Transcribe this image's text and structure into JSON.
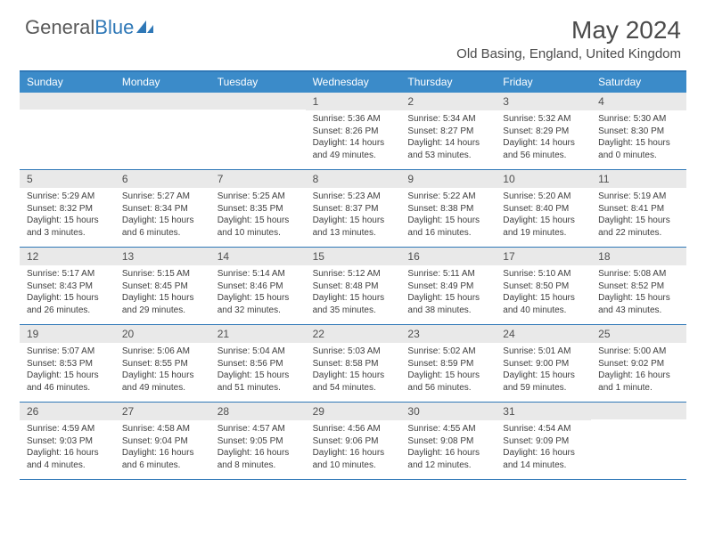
{
  "brand": {
    "part1": "General",
    "part2": "Blue"
  },
  "title": "May 2024",
  "location": "Old Basing, England, United Kingdom",
  "dows": [
    "Sunday",
    "Monday",
    "Tuesday",
    "Wednesday",
    "Thursday",
    "Friday",
    "Saturday"
  ],
  "colors": {
    "header_bar": "#3b8bc9",
    "rule": "#2f78b7",
    "daynum_bg": "#e9e9e9"
  },
  "weeks": [
    [
      {
        "day": "",
        "sunrise": "",
        "sunset": "",
        "daylight": ""
      },
      {
        "day": "",
        "sunrise": "",
        "sunset": "",
        "daylight": ""
      },
      {
        "day": "",
        "sunrise": "",
        "sunset": "",
        "daylight": ""
      },
      {
        "day": "1",
        "sunrise": "Sunrise: 5:36 AM",
        "sunset": "Sunset: 8:26 PM",
        "daylight": "Daylight: 14 hours and 49 minutes."
      },
      {
        "day": "2",
        "sunrise": "Sunrise: 5:34 AM",
        "sunset": "Sunset: 8:27 PM",
        "daylight": "Daylight: 14 hours and 53 minutes."
      },
      {
        "day": "3",
        "sunrise": "Sunrise: 5:32 AM",
        "sunset": "Sunset: 8:29 PM",
        "daylight": "Daylight: 14 hours and 56 minutes."
      },
      {
        "day": "4",
        "sunrise": "Sunrise: 5:30 AM",
        "sunset": "Sunset: 8:30 PM",
        "daylight": "Daylight: 15 hours and 0 minutes."
      }
    ],
    [
      {
        "day": "5",
        "sunrise": "Sunrise: 5:29 AM",
        "sunset": "Sunset: 8:32 PM",
        "daylight": "Daylight: 15 hours and 3 minutes."
      },
      {
        "day": "6",
        "sunrise": "Sunrise: 5:27 AM",
        "sunset": "Sunset: 8:34 PM",
        "daylight": "Daylight: 15 hours and 6 minutes."
      },
      {
        "day": "7",
        "sunrise": "Sunrise: 5:25 AM",
        "sunset": "Sunset: 8:35 PM",
        "daylight": "Daylight: 15 hours and 10 minutes."
      },
      {
        "day": "8",
        "sunrise": "Sunrise: 5:23 AM",
        "sunset": "Sunset: 8:37 PM",
        "daylight": "Daylight: 15 hours and 13 minutes."
      },
      {
        "day": "9",
        "sunrise": "Sunrise: 5:22 AM",
        "sunset": "Sunset: 8:38 PM",
        "daylight": "Daylight: 15 hours and 16 minutes."
      },
      {
        "day": "10",
        "sunrise": "Sunrise: 5:20 AM",
        "sunset": "Sunset: 8:40 PM",
        "daylight": "Daylight: 15 hours and 19 minutes."
      },
      {
        "day": "11",
        "sunrise": "Sunrise: 5:19 AM",
        "sunset": "Sunset: 8:41 PM",
        "daylight": "Daylight: 15 hours and 22 minutes."
      }
    ],
    [
      {
        "day": "12",
        "sunrise": "Sunrise: 5:17 AM",
        "sunset": "Sunset: 8:43 PM",
        "daylight": "Daylight: 15 hours and 26 minutes."
      },
      {
        "day": "13",
        "sunrise": "Sunrise: 5:15 AM",
        "sunset": "Sunset: 8:45 PM",
        "daylight": "Daylight: 15 hours and 29 minutes."
      },
      {
        "day": "14",
        "sunrise": "Sunrise: 5:14 AM",
        "sunset": "Sunset: 8:46 PM",
        "daylight": "Daylight: 15 hours and 32 minutes."
      },
      {
        "day": "15",
        "sunrise": "Sunrise: 5:12 AM",
        "sunset": "Sunset: 8:48 PM",
        "daylight": "Daylight: 15 hours and 35 minutes."
      },
      {
        "day": "16",
        "sunrise": "Sunrise: 5:11 AM",
        "sunset": "Sunset: 8:49 PM",
        "daylight": "Daylight: 15 hours and 38 minutes."
      },
      {
        "day": "17",
        "sunrise": "Sunrise: 5:10 AM",
        "sunset": "Sunset: 8:50 PM",
        "daylight": "Daylight: 15 hours and 40 minutes."
      },
      {
        "day": "18",
        "sunrise": "Sunrise: 5:08 AM",
        "sunset": "Sunset: 8:52 PM",
        "daylight": "Daylight: 15 hours and 43 minutes."
      }
    ],
    [
      {
        "day": "19",
        "sunrise": "Sunrise: 5:07 AM",
        "sunset": "Sunset: 8:53 PM",
        "daylight": "Daylight: 15 hours and 46 minutes."
      },
      {
        "day": "20",
        "sunrise": "Sunrise: 5:06 AM",
        "sunset": "Sunset: 8:55 PM",
        "daylight": "Daylight: 15 hours and 49 minutes."
      },
      {
        "day": "21",
        "sunrise": "Sunrise: 5:04 AM",
        "sunset": "Sunset: 8:56 PM",
        "daylight": "Daylight: 15 hours and 51 minutes."
      },
      {
        "day": "22",
        "sunrise": "Sunrise: 5:03 AM",
        "sunset": "Sunset: 8:58 PM",
        "daylight": "Daylight: 15 hours and 54 minutes."
      },
      {
        "day": "23",
        "sunrise": "Sunrise: 5:02 AM",
        "sunset": "Sunset: 8:59 PM",
        "daylight": "Daylight: 15 hours and 56 minutes."
      },
      {
        "day": "24",
        "sunrise": "Sunrise: 5:01 AM",
        "sunset": "Sunset: 9:00 PM",
        "daylight": "Daylight: 15 hours and 59 minutes."
      },
      {
        "day": "25",
        "sunrise": "Sunrise: 5:00 AM",
        "sunset": "Sunset: 9:02 PM",
        "daylight": "Daylight: 16 hours and 1 minute."
      }
    ],
    [
      {
        "day": "26",
        "sunrise": "Sunrise: 4:59 AM",
        "sunset": "Sunset: 9:03 PM",
        "daylight": "Daylight: 16 hours and 4 minutes."
      },
      {
        "day": "27",
        "sunrise": "Sunrise: 4:58 AM",
        "sunset": "Sunset: 9:04 PM",
        "daylight": "Daylight: 16 hours and 6 minutes."
      },
      {
        "day": "28",
        "sunrise": "Sunrise: 4:57 AM",
        "sunset": "Sunset: 9:05 PM",
        "daylight": "Daylight: 16 hours and 8 minutes."
      },
      {
        "day": "29",
        "sunrise": "Sunrise: 4:56 AM",
        "sunset": "Sunset: 9:06 PM",
        "daylight": "Daylight: 16 hours and 10 minutes."
      },
      {
        "day": "30",
        "sunrise": "Sunrise: 4:55 AM",
        "sunset": "Sunset: 9:08 PM",
        "daylight": "Daylight: 16 hours and 12 minutes."
      },
      {
        "day": "31",
        "sunrise": "Sunrise: 4:54 AM",
        "sunset": "Sunset: 9:09 PM",
        "daylight": "Daylight: 16 hours and 14 minutes."
      },
      {
        "day": "",
        "sunrise": "",
        "sunset": "",
        "daylight": ""
      }
    ]
  ]
}
